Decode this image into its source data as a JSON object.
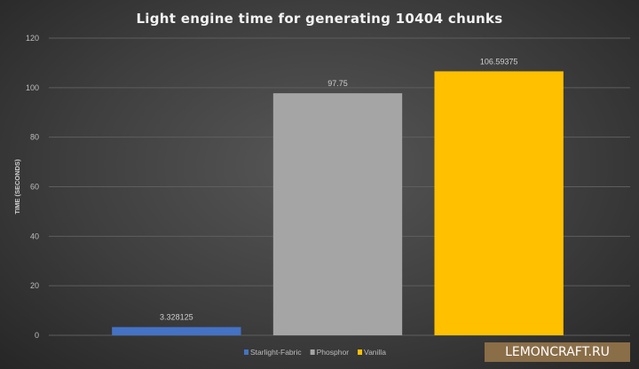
{
  "chart_data": {
    "type": "bar",
    "title": "Light engine time for generating 10404 chunks",
    "xlabel": "",
    "ylabel": "TIME (SECONDS)",
    "ylim": [
      0,
      120
    ],
    "yticks": [
      0,
      20,
      40,
      60,
      80,
      100,
      120
    ],
    "grid": true,
    "legend_position": "bottom",
    "series": [
      {
        "name": "Starlight-Fabric",
        "value": 3.328125,
        "label": "3.328125",
        "color": "#4472c4"
      },
      {
        "name": "Phosphor",
        "value": 97.75,
        "label": "97.75",
        "color": "#a5a5a5"
      },
      {
        "name": "Vanilla",
        "value": 106.59375,
        "label": "106.59375",
        "color": "#ffc000"
      }
    ]
  },
  "watermark": "LEMONCRAFT.RU"
}
